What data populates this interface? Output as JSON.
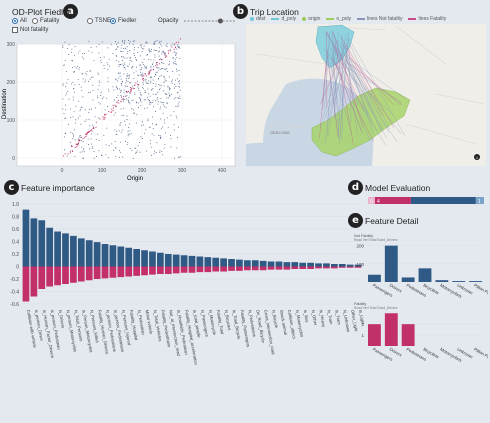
{
  "panels": {
    "a": {
      "badge": "a",
      "title": "OD-Plot Fiedler"
    },
    "b": {
      "badge": "b",
      "title": "Trip Location"
    },
    "c": {
      "badge": "c",
      "title": "Feature importance"
    },
    "d": {
      "badge": "d",
      "title": "Model Evaluation"
    },
    "e": {
      "badge": "e",
      "title": "Feature Detail"
    }
  },
  "controls": {
    "radios": [
      {
        "label": "All",
        "selected": true
      },
      {
        "label": "Fatality",
        "selected": false
      },
      {
        "label": "TSNE",
        "selected": false
      },
      {
        "label": "Fiedler",
        "selected": true
      }
    ],
    "checkbox": {
      "label": "Not fatality"
    },
    "opacity_label": "Opacity",
    "opacity_value": 0.7
  },
  "od_plot": {
    "xlabel": "Origin",
    "ylabel": "Destination",
    "xticks": [
      "0",
      "100",
      "200",
      "300",
      "400"
    ],
    "yticks": [
      "0",
      "100",
      "200",
      "300"
    ]
  },
  "map": {
    "legend": [
      "dest",
      "d_poly",
      "origin",
      "o_poly",
      "lines Not fatality",
      "lines Fatality"
    ],
    "place_label": "GEELONG",
    "colors": {
      "dest": "#6ec6d6",
      "origin": "#9ccc5a",
      "line_nf": "#8a94b8",
      "line_f": "#c94b8a"
    }
  },
  "model_eval": {
    "segments": [
      {
        "label": "0",
        "value": 0.06,
        "color": "#e8b6cc"
      },
      {
        "label": "4",
        "value": 0.31,
        "color": "#c2306a"
      },
      {
        "label": "",
        "value": 0.56,
        "color": "#2f5a86"
      },
      {
        "label": "1",
        "value": 0.07,
        "color": "#7aa3cc"
      }
    ]
  },
  "chart_data": [
    {
      "type": "bar",
      "title": "Feature importance",
      "ylim": [
        -0.6,
        1.0
      ],
      "yticks": [
        "1.0",
        "0.8",
        "0.6",
        "0.4",
        "0.2",
        "0",
        "-0.2",
        "-0.4",
        "-0.6"
      ],
      "categories": [
        "Collision with vehicle",
        "is_person_Driver",
        "Is_Human_Factor_Drivers",
        "is_person_Pedestrian",
        "N_Drivers",
        "N_person_Motorcyclist",
        "N_Total_Persons",
        "Is_Person_Motorcyclist",
        "N_Persons_Killed",
        "Fatality_Human_Drivers",
        "N_person_Pedestrians",
        "Is_person_Pedestrians",
        "N_Persons_Injured",
        "Fatality_Hospital",
        "N_Pedestrian",
        "Motor vehicle",
        "N_Total_Vehicles",
        "Fatality_Pedestrians",
        "Not_at_intersection_road",
        "Is_Roadside_Pedestrian",
        "Fatality_Hospital_acceleration",
        "Is_total_people",
        "N_Passengers",
        "N_Motorcycle",
        "Fatality_Total",
        "N_Bicycles",
        "Is_Total_Bicycle",
        "Fatality_Passengers",
        "N_Pedestrians",
        "On_Road_Bicycle",
        "Cross_intersection_road",
        "N_Bicycle",
        "Struck animal",
        "Collision_object",
        "N_Motorcyclist",
        "Is_Bus",
        "N_Other",
        "Is_Heavy",
        "N_Train",
        "Is_Tram",
        "N_Unknown",
        "Other_Light",
        "Is_Light"
      ],
      "series": [
        {
          "values": [
            0.91,
            0.77,
            0.74,
            0.62,
            0.56,
            0.53,
            0.49,
            0.45,
            0.42,
            0.39,
            0.36,
            0.34,
            0.32,
            0.3,
            0.28,
            0.26,
            0.24,
            0.22,
            0.2,
            0.19,
            0.18,
            0.17,
            0.16,
            0.15,
            0.14,
            0.13,
            0.12,
            0.11,
            0.1,
            0.1,
            0.09,
            0.08,
            0.08,
            0.07,
            0.07,
            0.06,
            0.06,
            0.05,
            0.05,
            0.04,
            0.04,
            0.03,
            0.03
          ],
          "color": "#2f5a86"
        },
        {
          "values": [
            -0.56,
            -0.48,
            -0.36,
            -0.32,
            -0.3,
            -0.28,
            -0.26,
            -0.24,
            -0.22,
            -0.2,
            -0.19,
            -0.18,
            -0.17,
            -0.16,
            -0.15,
            -0.14,
            -0.13,
            -0.12,
            -0.12,
            -0.11,
            -0.1,
            -0.1,
            -0.09,
            -0.09,
            -0.08,
            -0.08,
            -0.07,
            -0.07,
            -0.06,
            -0.06,
            -0.06,
            -0.05,
            -0.05,
            -0.05,
            -0.04,
            -0.04,
            -0.04,
            -0.03,
            -0.03,
            -0.03,
            -0.02,
            -0.02,
            -0.02
          ],
          "color": "#c2306a"
        }
      ]
    },
    {
      "type": "bar",
      "title": "Not Fatality",
      "subtitle": "Road Vert Total Sued_Drivers",
      "categories": [
        "Passengers",
        "Drivers",
        "Pedestrians",
        "Bicyclists",
        "Motorcyclists",
        "Unknown",
        "Pillion Passengers"
      ],
      "values": [
        40,
        200,
        25,
        75,
        10,
        5,
        5
      ],
      "yticks": [
        "200",
        "100"
      ],
      "ylim": [
        0,
        220
      ],
      "color": "#2f5a86"
    },
    {
      "type": "bar",
      "title": "Fatality",
      "subtitle": "Road Vert Total Sued_Drivers",
      "categories": [
        "Passengers",
        "Drivers",
        "Pedestrians",
        "Bicyclists",
        "Motorcyclists",
        "Unknown",
        "Pillion Passengers"
      ],
      "values": [
        2,
        3,
        2,
        0,
        0,
        0,
        0
      ],
      "yticks": [
        "2",
        "1"
      ],
      "ylim": [
        0,
        3.3
      ],
      "color": "#c2306a"
    }
  ]
}
